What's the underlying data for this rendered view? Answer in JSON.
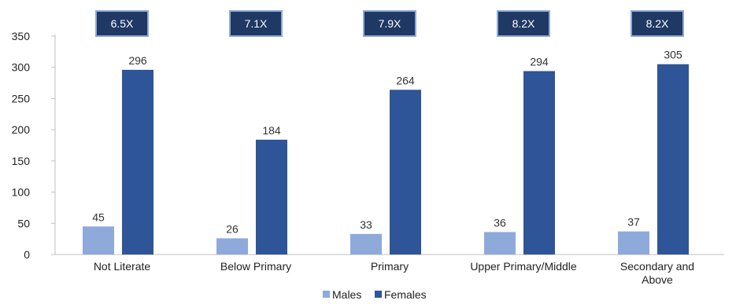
{
  "chart_data": {
    "type": "bar",
    "categories": [
      "Not Literate",
      "Below Primary",
      "Primary",
      "Upper Primary/Middle",
      "Secondary and Above"
    ],
    "category_lines": [
      [
        "Not Literate"
      ],
      [
        "Below Primary"
      ],
      [
        "Primary"
      ],
      [
        "Upper Primary/Middle"
      ],
      [
        "Secondary and",
        "Above"
      ]
    ],
    "series": [
      {
        "name": "Males",
        "values": [
          45,
          26,
          33,
          36,
          37
        ],
        "color": "#8eaadb"
      },
      {
        "name": "Females",
        "values": [
          296,
          184,
          264,
          294,
          305
        ],
        "color": "#2e5597"
      }
    ],
    "annotations": [
      "6.5X",
      "7.1X",
      "7.9X",
      "8.2X",
      "8.2X"
    ],
    "annotation_box_color": "#1f3864",
    "annotation_border_color": "#8eaadb",
    "ylim": [
      0,
      350
    ],
    "yticks": [
      0,
      50,
      100,
      150,
      200,
      250,
      300,
      350
    ],
    "grid": false,
    "legend": "bottom"
  }
}
